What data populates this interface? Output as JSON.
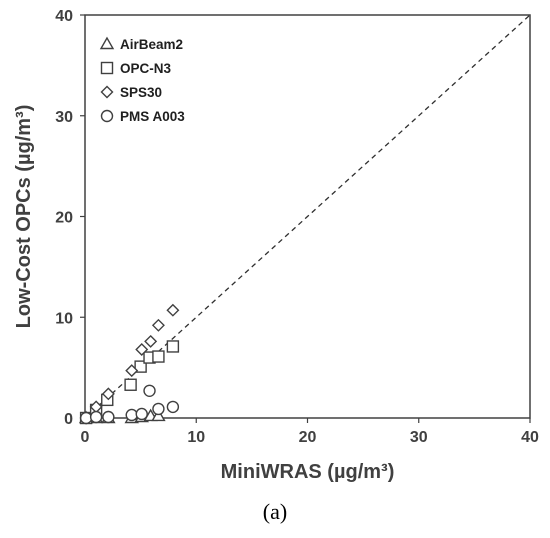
{
  "chart_data": {
    "type": "scatter",
    "title": "",
    "xlabel": "MiniWRAS (µg/m³)",
    "ylabel": "Low-Cost OPCs (µg/m³)",
    "xlim": [
      0,
      40
    ],
    "ylim": [
      0,
      40
    ],
    "xticks": [
      "0",
      "10",
      "20",
      "30",
      "40"
    ],
    "yticks": [
      "0",
      "10",
      "20",
      "30",
      "40"
    ],
    "grid": false,
    "legend_position": "top-left",
    "reference_line": {
      "style": "dashed",
      "from": [
        0,
        0
      ],
      "to": [
        40,
        40
      ]
    },
    "series": [
      {
        "name": "AirBeam2",
        "marker": "triangle",
        "x": [
          0.1,
          1.0,
          2.1,
          4.2,
          5.1,
          5.9,
          6.6
        ],
        "y": [
          0.0,
          0.0,
          0.0,
          0.0,
          0.1,
          0.2,
          0.2
        ]
      },
      {
        "name": "OPC-N3",
        "marker": "square",
        "x": [
          0.1,
          1.0,
          2.0,
          4.1,
          5.0,
          5.8,
          6.6,
          7.9
        ],
        "y": [
          0.0,
          0.8,
          1.8,
          3.3,
          5.1,
          6.0,
          6.1,
          7.1
        ]
      },
      {
        "name": "SPS30",
        "marker": "diamond",
        "x": [
          0.1,
          1.0,
          2.1,
          4.2,
          5.1,
          5.9,
          6.6,
          7.9
        ],
        "y": [
          0.0,
          1.1,
          2.4,
          4.7,
          6.8,
          7.6,
          9.2,
          10.7
        ]
      },
      {
        "name": "PMS A003",
        "marker": "circle",
        "x": [
          0.1,
          1.0,
          2.1,
          4.2,
          5.1,
          5.8,
          6.6,
          7.9
        ],
        "y": [
          0.0,
          0.1,
          0.1,
          0.3,
          0.4,
          2.7,
          0.9,
          1.1
        ]
      }
    ]
  },
  "caption": "(a)"
}
